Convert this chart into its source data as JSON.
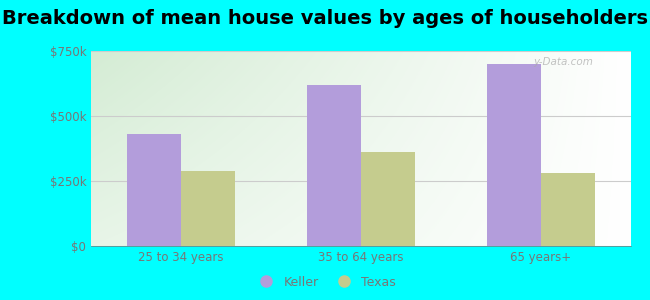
{
  "title": "Breakdown of mean house values by ages of householders",
  "categories": [
    "25 to 34 years",
    "35 to 64 years",
    "65 years+"
  ],
  "keller_values": [
    430000,
    620000,
    700000
  ],
  "texas_values": [
    290000,
    360000,
    280000
  ],
  "keller_color": "#b39ddb",
  "texas_color": "#c5cc8e",
  "background_color": "#00ffff",
  "plot_bg_color_topleft": "#d4ecd4",
  "plot_bg_color_topright": "#f0fff0",
  "plot_bg_color_bottom": "#e8f5e8",
  "ylim": [
    0,
    750000
  ],
  "yticks": [
    0,
    250000,
    500000,
    750000
  ],
  "ytick_labels": [
    "$0",
    "$250k",
    "$500k",
    "$750k"
  ],
  "title_fontsize": 14,
  "bar_width": 0.3,
  "legend_labels": [
    "Keller",
    "Texas"
  ],
  "watermark": "y-Data.com",
  "tick_color": "#777777",
  "grid_color": "#cccccc"
}
